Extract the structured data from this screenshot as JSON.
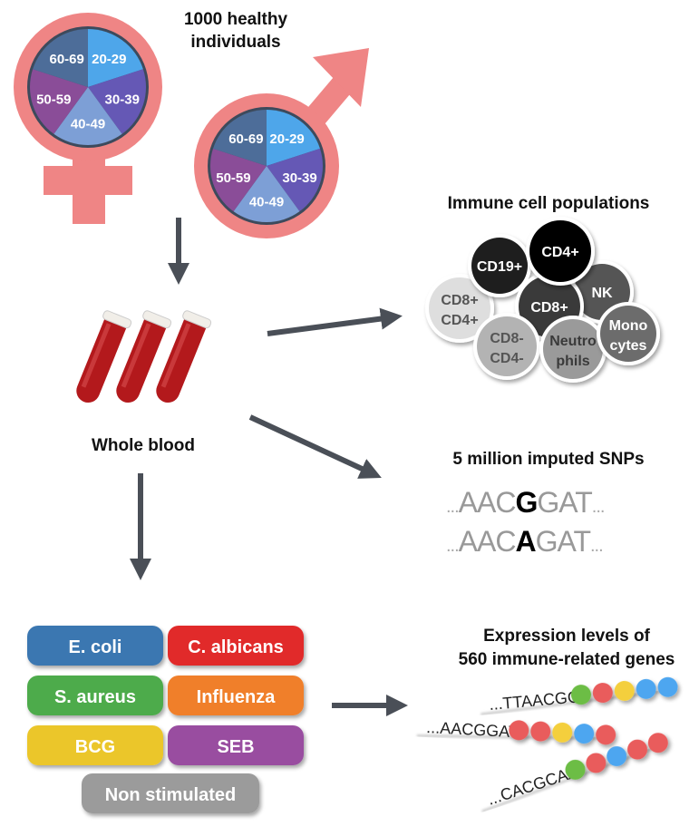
{
  "colors": {
    "symbol_pink": "#ef8585",
    "arrow": "#4a4f57",
    "age_groups": {
      "20-29": "#4ea6ea",
      "30-39": "#6558b5",
      "40-49": "#7d9fd6",
      "50-59": "#8a4d98",
      "60-69": "#4d6d99"
    },
    "bead_green": "#6cbd45",
    "bead_red": "#e95b5b",
    "bead_yellow": "#f4cf3c",
    "bead_blue": "#4da6f0"
  },
  "title_individuals": [
    "1000 healthy",
    "individuals"
  ],
  "age_groups": [
    "20-29",
    "30-39",
    "40-49",
    "50-59",
    "60-69"
  ],
  "sexes": [
    {
      "symbol": "female-symbol"
    },
    {
      "symbol": "male-symbol"
    }
  ],
  "whole_blood_label": "Whole blood",
  "immune": {
    "title": "Immune cell populations",
    "cells": [
      {
        "lines": [
          "CD8+",
          "CD4+"
        ],
        "fill": "#dedede",
        "text": "#555"
      },
      {
        "lines": [
          "CD19+"
        ],
        "fill": "#1e1e1e",
        "text": "#fff"
      },
      {
        "lines": [
          "NK"
        ],
        "fill": "#555555",
        "text": "#fff"
      },
      {
        "lines": [
          "CD8+"
        ],
        "fill": "#3a3a3a",
        "text": "#fff"
      },
      {
        "lines": [
          "CD4+"
        ],
        "fill": "#000000",
        "text": "#fff"
      },
      {
        "lines": [
          "CD8-",
          "CD4-"
        ],
        "fill": "#b3b3b3",
        "text": "#555"
      },
      {
        "lines": [
          "Neutro",
          "phils"
        ],
        "fill": "#9a9a9a",
        "text": "#3a3a3a"
      },
      {
        "lines": [
          "Mono",
          "cytes"
        ],
        "fill": "#6c6c6c",
        "text": "#fff"
      }
    ]
  },
  "snps": {
    "title": "5 million imputed SNPs",
    "sequences": [
      {
        "prefix": "...",
        "before": "AAC",
        "variant": "G",
        "after": "GAT",
        "suffix": "..."
      },
      {
        "prefix": "...",
        "before": "AAC",
        "variant": "A",
        "after": "GAT",
        "suffix": "..."
      }
    ]
  },
  "expression": {
    "title": [
      "Expression levels of",
      "560 immune-related genes"
    ],
    "strands": [
      {
        "seq": "...TTAACGG",
        "beads": [
          "green",
          "red",
          "yellow",
          "blue",
          "blue"
        ]
      },
      {
        "seq": "...AACGGAT",
        "beads": [
          "red",
          "red",
          "yellow",
          "blue",
          "red"
        ]
      },
      {
        "seq": "...CACGCAA",
        "beads": [
          "green",
          "red",
          "blue",
          "red",
          "red"
        ]
      }
    ]
  },
  "stimuli": [
    {
      "label": "E. coli",
      "color": "#3b77b1"
    },
    {
      "label": "C. albicans",
      "color": "#e12a2c"
    },
    {
      "label": "S. aureus",
      "color": "#4dab4b"
    },
    {
      "label": "Influenza",
      "color": "#f07f2b"
    },
    {
      "label": "BCG",
      "color": "#ebc62c"
    },
    {
      "label": "SEB",
      "color": "#994ea0"
    },
    {
      "label": "Non stimulated",
      "color": "#9b9b9b"
    }
  ]
}
